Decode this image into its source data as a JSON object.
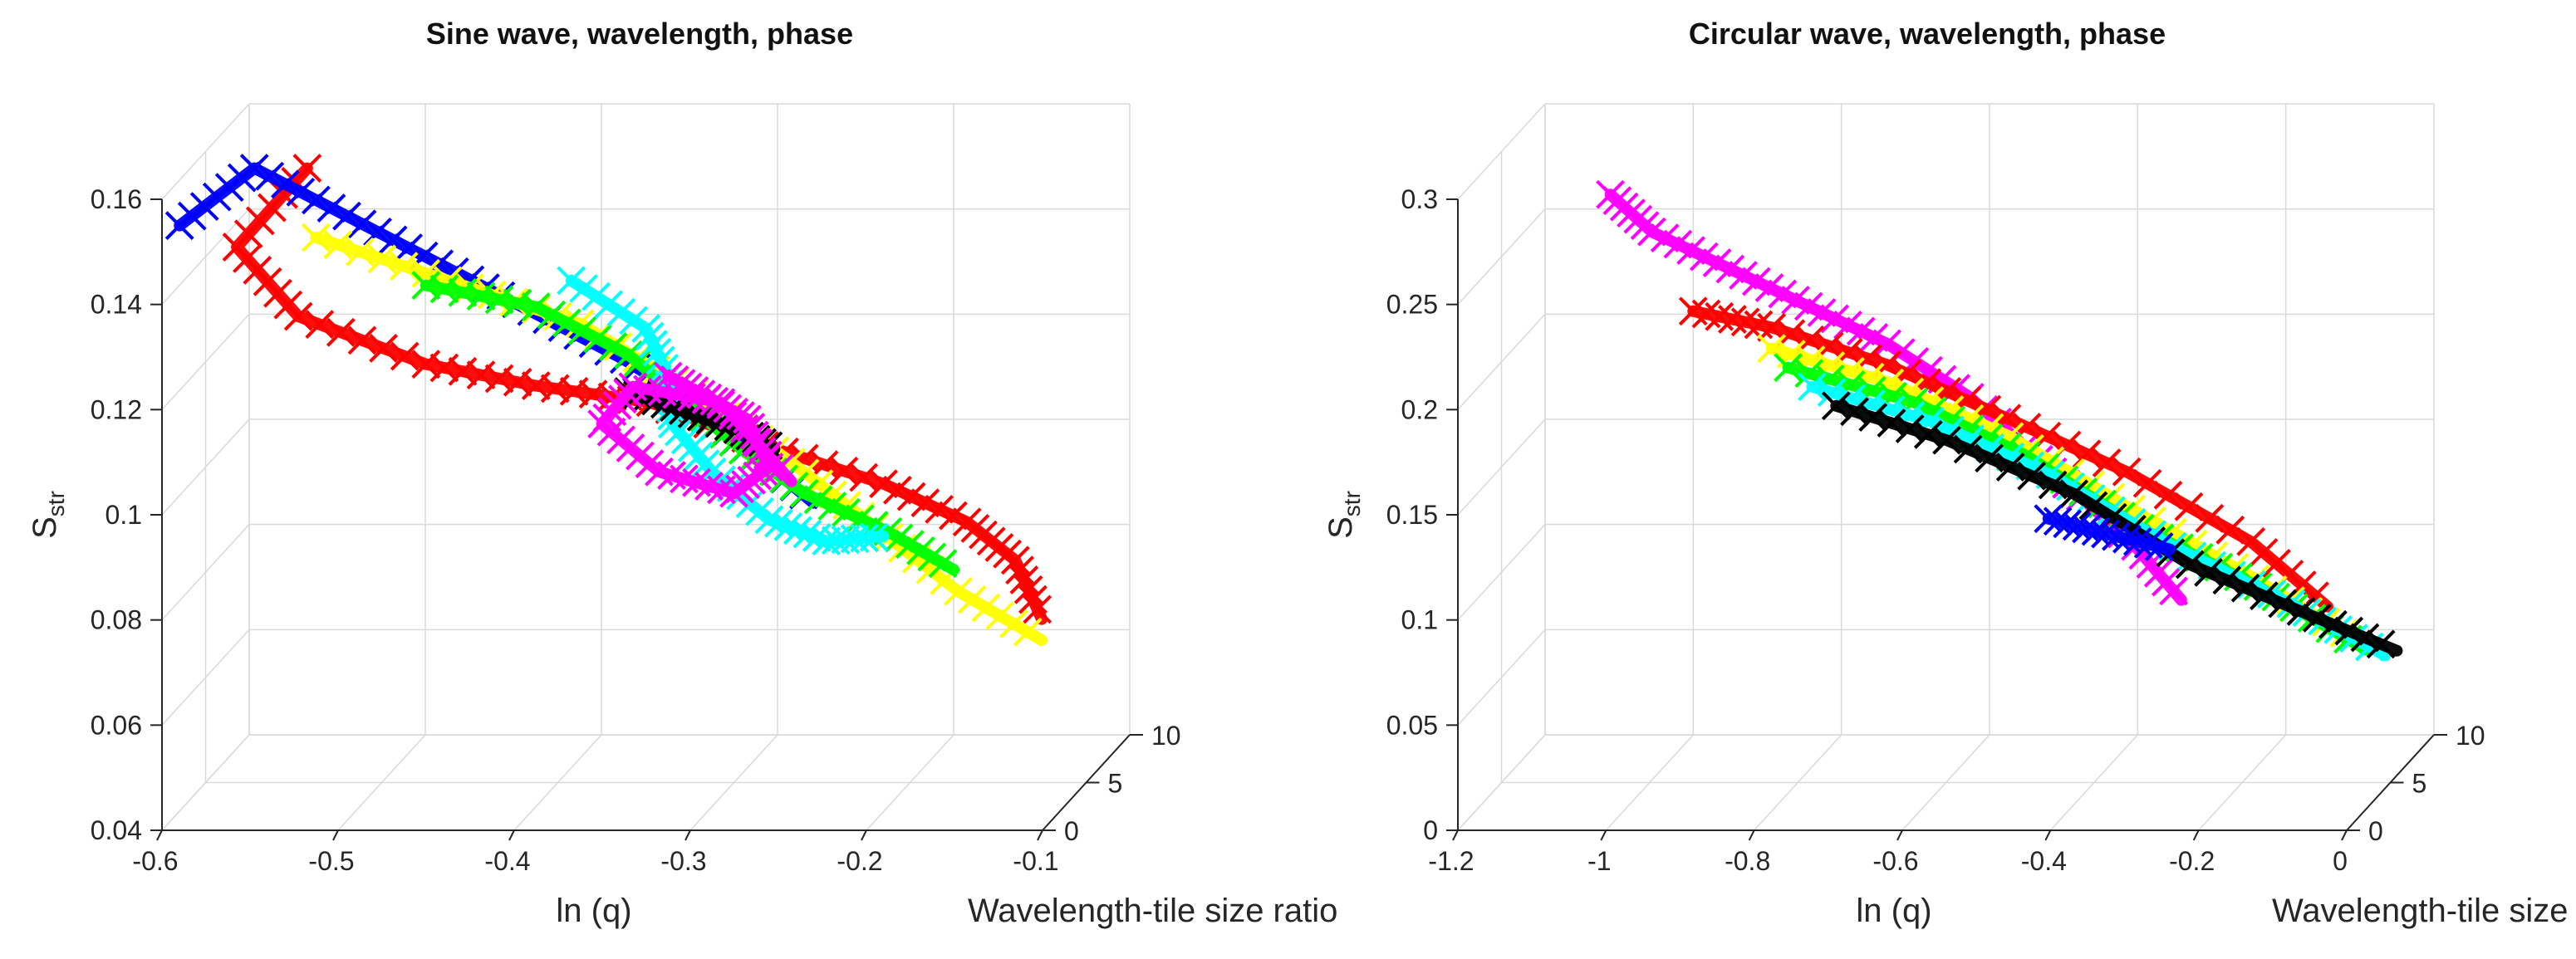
{
  "colors": {
    "red": "#ff0000",
    "blue": "#0000ff",
    "yellow": "#ffff00",
    "green": "#00ff00",
    "cyan": "#00ffff",
    "magenta": "#ff00ff",
    "black": "#000000"
  },
  "chart_data": [
    {
      "type": "line3d",
      "title": "Sine wave, wavelength, phase",
      "xlabel": "ln (q)",
      "ylabel": "Wavelength-tile size ratio",
      "zlabel_main": "S",
      "zlabel_sub": "str",
      "xlim": [
        -0.6,
        -0.1
      ],
      "ylim": [
        0,
        10
      ],
      "zlim": [
        0.04,
        0.16
      ],
      "x_ticks": [
        "-0.6",
        "-0.5",
        "-0.4",
        "-0.3",
        "-0.2",
        "-0.1"
      ],
      "y_ticks": [
        "0",
        "5",
        "10"
      ],
      "z_ticks": [
        "0.04",
        "0.06",
        "0.08",
        "0.1",
        "0.12",
        "0.14",
        "0.16"
      ],
      "grid": true,
      "series": [
        {
          "color": "#ff0000",
          "x": [
            -0.52,
            -0.56,
            -0.53,
            -0.46,
            -0.4,
            -0.34,
            -0.28,
            -0.22,
            -0.18,
            -0.16,
            -0.15
          ],
          "y": [
            0.5,
            0.5,
            1.5,
            2.0,
            2.5,
            3.5,
            4.5,
            6,
            7.5,
            9,
            10
          ],
          "z": [
            0.165,
            0.15,
            0.135,
            0.125,
            0.12,
            0.115,
            0.105,
            0.095,
            0.085,
            0.075,
            0.062
          ]
        },
        {
          "color": "#0000ff",
          "x": [
            -0.59,
            -0.55,
            -0.5,
            -0.45,
            -0.4,
            -0.35,
            -0.31,
            -0.28,
            -0.25
          ],
          "y": [
            0,
            0.5,
            1.0,
            1.5,
            2.0,
            2.5,
            3.0,
            3.5,
            4.0
          ],
          "z": [
            0.155,
            0.165,
            0.155,
            0.145,
            0.135,
            0.125,
            0.115,
            0.105,
            0.095
          ]
        },
        {
          "color": "#ffff00",
          "x": [
            -0.52,
            -0.45,
            -0.38,
            -0.32,
            -0.27,
            -0.23,
            -0.19,
            -0.15
          ],
          "y": [
            1.5,
            2.5,
            3.5,
            4.5,
            5.5,
            7,
            8.5,
            10
          ],
          "z": [
            0.15,
            0.14,
            0.13,
            0.115,
            0.1,
            0.085,
            0.07,
            0.058
          ]
        },
        {
          "color": "#00ff00",
          "x": [
            -0.46,
            -0.4,
            -0.35,
            -0.32,
            -0.29,
            -0.26,
            -0.22,
            -0.19
          ],
          "y": [
            2.0,
            2.5,
            3.0,
            3.5,
            4.0,
            5.0,
            6.5,
            8.0
          ],
          "z": [
            0.14,
            0.135,
            0.125,
            0.115,
            0.105,
            0.095,
            0.085,
            0.075
          ]
        },
        {
          "color": "#00ffff",
          "x": [
            -0.38,
            -0.34,
            -0.33,
            -0.33,
            -0.31,
            -0.28,
            -0.25,
            -0.22
          ],
          "y": [
            2.5,
            3.0,
            3.5,
            4.0,
            4.5,
            5.0,
            5.5,
            6.0
          ],
          "z": [
            0.14,
            0.13,
            0.12,
            0.11,
            0.1,
            0.09,
            0.085,
            0.085
          ]
        },
        {
          "color": "#000000",
          "x": [
            -0.35,
            -0.32,
            -0.29,
            -0.27
          ],
          "y": [
            3.0,
            3.2,
            3.4,
            3.6
          ],
          "z": [
            0.118,
            0.114,
            0.11,
            0.106
          ]
        },
        {
          "color": "#ff00ff",
          "x": [
            -0.33,
            -0.31,
            -0.29,
            -0.28,
            -0.3,
            -0.34,
            -0.37,
            -0.35,
            -0.3,
            -0.26
          ],
          "y": [
            3.5,
            4.0,
            4.5,
            5.0,
            5.0,
            4.5,
            4.0,
            3.5,
            3.5,
            3.5
          ],
          "z": [
            0.12,
            0.115,
            0.11,
            0.1,
            0.095,
            0.1,
            0.11,
            0.118,
            0.115,
            0.1
          ]
        }
      ]
    },
    {
      "type": "line3d",
      "title": "Circular wave, wavelength, phase",
      "xlabel": "ln (q)",
      "ylabel": "Wavelength-tile size ratio",
      "zlabel_main": "S",
      "zlabel_sub": "str",
      "xlim": [
        -1.2,
        0
      ],
      "ylim": [
        0,
        10
      ],
      "zlim": [
        0,
        0.3
      ],
      "x_ticks": [
        "-1.2",
        "-1",
        "-0.8",
        "-0.6",
        "-0.4",
        "-0.2",
        "0"
      ],
      "y_ticks": [
        "0",
        "5",
        "10"
      ],
      "z_ticks": [
        "0",
        "0.05",
        "0.1",
        "0.15",
        "0.2",
        "0.25",
        "0.3"
      ],
      "grid": true,
      "series": [
        {
          "color": "#ff00ff",
          "x": [
            -1.0,
            -0.95,
            -0.85,
            -0.75,
            -0.65,
            -0.55,
            -0.45,
            -0.35,
            -0.3
          ],
          "y": [
            0.5,
            1.0,
            1.5,
            2.0,
            2.5,
            3.5,
            4.5,
            5.5,
            6.5
          ],
          "z": [
            0.3,
            0.28,
            0.26,
            0.24,
            0.22,
            0.19,
            0.15,
            0.11,
            0.08
          ]
        },
        {
          "color": "#ff0000",
          "x": [
            -0.9,
            -0.8,
            -0.65,
            -0.5,
            -0.35,
            -0.2,
            -0.12
          ],
          "y": [
            1.5,
            2.0,
            2.5,
            3.5,
            4.5,
            6.0,
            8.0
          ],
          "z": [
            0.24,
            0.23,
            0.21,
            0.18,
            0.15,
            0.11,
            0.07
          ]
        },
        {
          "color": "#ffff00",
          "x": [
            -0.8,
            -0.65,
            -0.5,
            -0.35,
            -0.2,
            -0.08
          ],
          "y": [
            2.0,
            2.8,
            3.8,
            5.0,
            6.5,
            8.5
          ],
          "z": [
            0.22,
            0.2,
            0.17,
            0.13,
            0.09,
            0.05
          ]
        },
        {
          "color": "#00ff00",
          "x": [
            -0.78,
            -0.62,
            -0.48,
            -0.34,
            -0.2,
            -0.08
          ],
          "y": [
            2.2,
            3.0,
            4.0,
            5.2,
            6.8,
            9.0
          ],
          "z": [
            0.21,
            0.19,
            0.16,
            0.12,
            0.085,
            0.045
          ]
        },
        {
          "color": "#00ffff",
          "x": [
            -0.75,
            -0.6,
            -0.45,
            -0.3,
            -0.16,
            -0.06
          ],
          "y": [
            2.4,
            3.2,
            4.2,
            5.5,
            7.2,
            9.5
          ],
          "z": [
            0.2,
            0.18,
            0.15,
            0.11,
            0.075,
            0.04
          ]
        },
        {
          "color": "#000000",
          "x": [
            -0.72,
            -0.58,
            -0.42,
            -0.28,
            -0.15,
            -0.05
          ],
          "y": [
            2.6,
            3.4,
            4.4,
            5.8,
            7.5,
            10
          ],
          "z": [
            0.19,
            0.17,
            0.14,
            0.1,
            0.07,
            0.04
          ]
        },
        {
          "color": "#0000ff",
          "x": [
            -0.45,
            -0.38,
            -0.3
          ],
          "y": [
            4.0,
            4.6,
            5.2
          ],
          "z": [
            0.13,
            0.12,
            0.11
          ]
        }
      ]
    }
  ]
}
